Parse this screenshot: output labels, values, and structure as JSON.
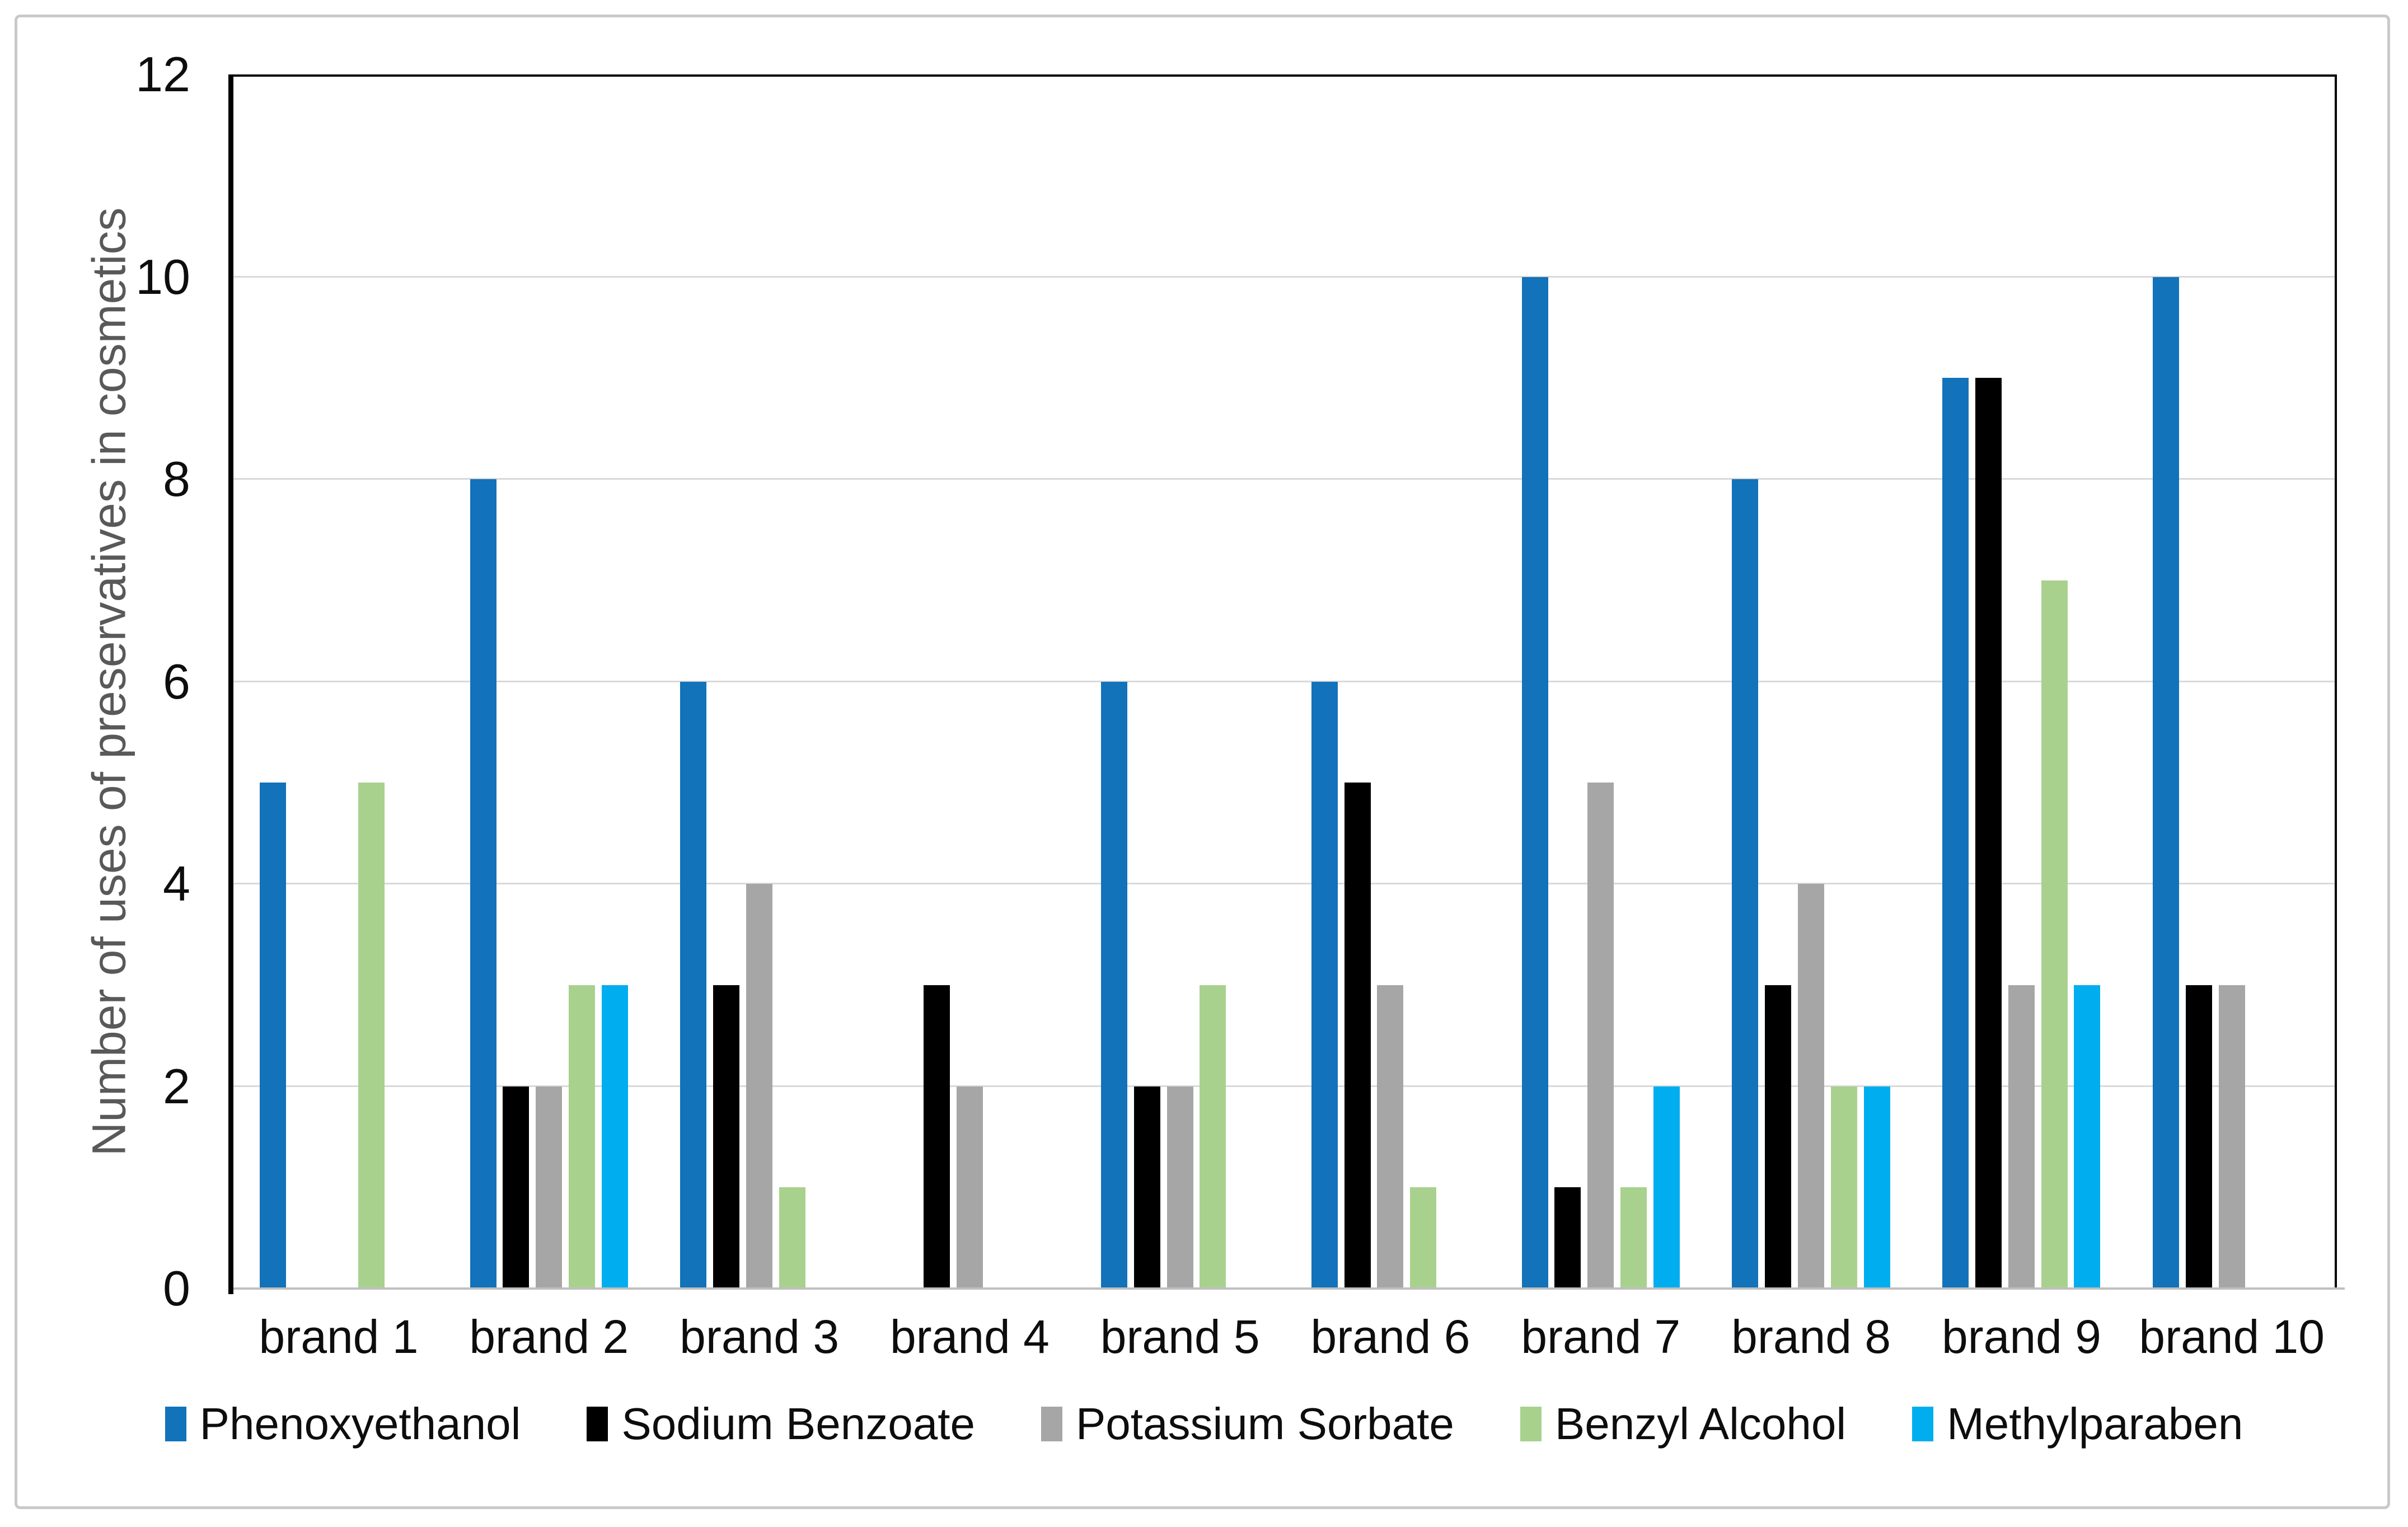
{
  "chart_data": {
    "type": "bar",
    "title": "",
    "xlabel": "",
    "ylabel": "Number of uses of preservatives in cosmetics",
    "ylim": [
      0,
      12
    ],
    "yticks": [
      0,
      2,
      4,
      6,
      8,
      10,
      12
    ],
    "grid": "horizontal",
    "legend_position": "bottom",
    "categories": [
      "brand 1",
      "brand 2",
      "brand 3",
      "brand 4",
      "brand 5",
      "brand 6",
      "brand 7",
      "brand 8",
      "brand 9",
      "brand 10"
    ],
    "series": [
      {
        "name": "Phenoxyethanol",
        "color": "#1272ba",
        "values": [
          5,
          8,
          6,
          0,
          6,
          6,
          10,
          8,
          9,
          10
        ]
      },
      {
        "name": "Sodium Benzoate",
        "color": "#000000",
        "values": [
          0,
          2,
          3,
          3,
          2,
          5,
          1,
          3,
          9,
          3
        ]
      },
      {
        "name": "Potassium Sorbate",
        "color": "#a6a6a6",
        "values": [
          0,
          2,
          4,
          2,
          2,
          3,
          5,
          4,
          3,
          3
        ]
      },
      {
        "name": "Benzyl Alcohol",
        "color": "#a9d18e",
        "values": [
          5,
          3,
          1,
          0,
          3,
          1,
          1,
          2,
          7,
          0
        ]
      },
      {
        "name": "Methylparaben",
        "color": "#00aeef",
        "values": [
          0,
          3,
          0,
          0,
          0,
          0,
          2,
          2,
          3,
          0
        ]
      }
    ],
    "colors": {
      "gridline": "#d9d9d9",
      "plot_border": "#000000",
      "x_axis_line": "#bfbfbf",
      "axis_title_text": "#595959",
      "tick_text": "#0d0d0d",
      "figure_border": "#c9c9c9"
    }
  }
}
